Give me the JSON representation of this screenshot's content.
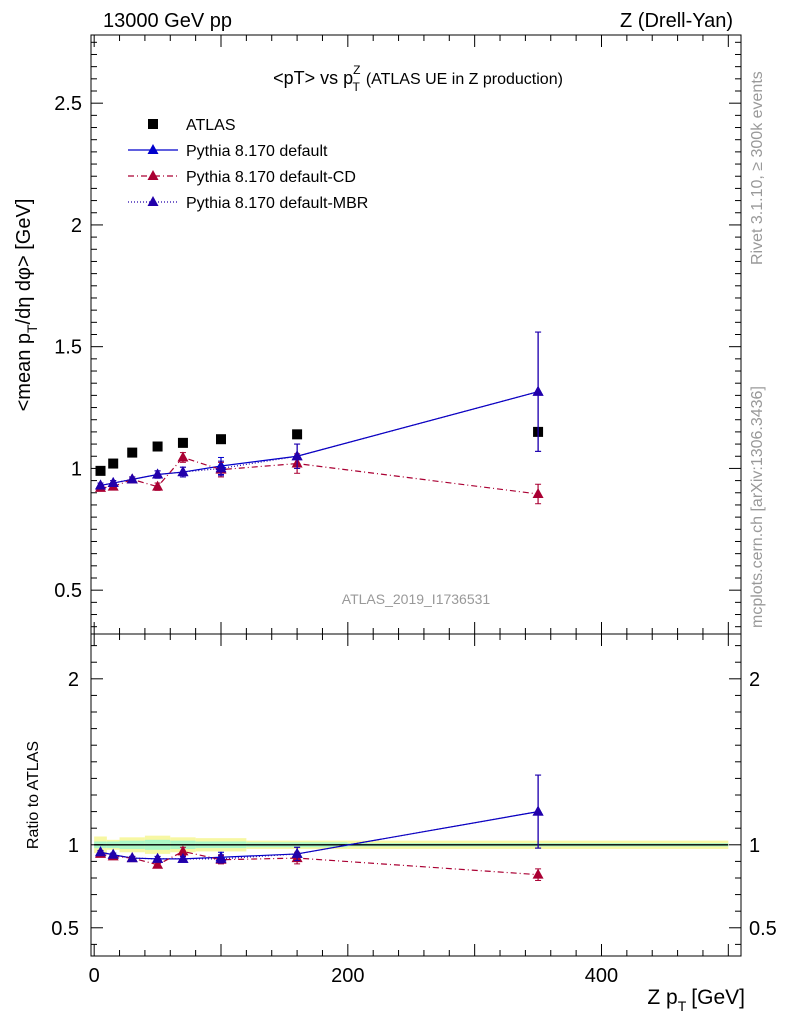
{
  "header": {
    "left": "13000 GeV pp",
    "right": "Z (Drell-Yan)"
  },
  "side_text": {
    "rivet": "Rivet 3.1.10, ≥ 300k events",
    "mcplots": "mcplots.cern.ch [arXiv:1306.3436]"
  },
  "analysis_id": "ATLAS_2019_I1736531",
  "colors": {
    "atlas": "#000000",
    "default": "#0000cc",
    "cd": "#aa0033",
    "mbr": "#2200aa",
    "band_inner": "#aaf7c6",
    "band_outer": "#f7f7a3"
  },
  "chart_data": [
    {
      "type": "scatter",
      "title": "<pT> vs p_T^Z (ATLAS UE in Z production)",
      "title_main": "<pT> vs p",
      "title_sup": "Z",
      "title_sub": "T",
      "title_rest": "(ATLAS UE in Z production)",
      "ylabel": "<mean p_T/dη dφ> [GeV]",
      "ylabel_a": "<mean p",
      "ylabel_sub": "T",
      "ylabel_b": "/dη dφ> [GeV]",
      "xlim": [
        -2.5,
        510
      ],
      "ylim": [
        0.32,
        2.78
      ],
      "yticks": [
        0.5,
        1,
        1.5,
        2,
        2.5
      ],
      "ytick_labels": [
        "0.5",
        "1",
        "1.5",
        "2",
        "2.5"
      ],
      "legend_position": "top-left",
      "series": [
        {
          "name": "ATLAS",
          "style": "marker-only",
          "x": [
            5,
            15,
            30,
            50,
            70,
            100,
            160,
            350
          ],
          "y": [
            0.99,
            1.02,
            1.065,
            1.09,
            1.105,
            1.12,
            1.14,
            1.15
          ]
        },
        {
          "name": "Pythia 8.170 default",
          "style": "solid",
          "x": [
            5,
            15,
            30,
            50,
            70,
            100,
            160,
            350
          ],
          "y": [
            0.93,
            0.94,
            0.955,
            0.975,
            0.985,
            1.01,
            1.05,
            1.315
          ],
          "err": [
            0.01,
            0.01,
            0.01,
            0.015,
            0.02,
            0.035,
            0.05,
            0.245
          ]
        },
        {
          "name": "Pythia 8.170 default-CD",
          "style": "dash-dot",
          "x": [
            5,
            15,
            30,
            50,
            70,
            100,
            160,
            350
          ],
          "y": [
            0.92,
            0.925,
            0.955,
            0.925,
            1.045,
            0.995,
            1.02,
            0.895
          ],
          "err": [
            0.01,
            0.01,
            0.01,
            0.015,
            0.02,
            0.03,
            0.04,
            0.04
          ]
        },
        {
          "name": "Pythia 8.170 default-MBR",
          "style": "dotted",
          "x": [
            5,
            15,
            30,
            50,
            70,
            100,
            160,
            350
          ],
          "y": [
            0.93,
            0.94,
            0.955,
            0.975,
            0.985,
            1.0,
            1.05,
            1.315
          ],
          "err": [
            0.01,
            0.01,
            0.01,
            0.015,
            0.02,
            0.03,
            0.05,
            0.245
          ]
        }
      ]
    },
    {
      "type": "scatter",
      "ylabel": "Ratio to ATLAS",
      "xlabel": "Z p_T [GeV]",
      "xlabel_a": "Z p",
      "xlabel_sub": "T",
      "xlabel_b": "[GeV]",
      "xlim": [
        -2.5,
        510
      ],
      "ylim": [
        0.33,
        2.27
      ],
      "xticks": [
        0,
        200,
        400
      ],
      "xtick_labels": [
        "0",
        "200",
        "400"
      ],
      "yticks": [
        0.5,
        1,
        2
      ],
      "ytick_labels": [
        "0.5",
        "1",
        "2"
      ],
      "reference_line": 1,
      "band": {
        "segments": [
          {
            "x": [
              0,
              10
            ],
            "inner": 0.02,
            "outer": 0.05
          },
          {
            "x": [
              10,
              20
            ],
            "inner": 0.02,
            "outer": 0.03
          },
          {
            "x": [
              20,
              40
            ],
            "inner": 0.025,
            "outer": 0.045
          },
          {
            "x": [
              40,
              60
            ],
            "inner": 0.03,
            "outer": 0.055
          },
          {
            "x": [
              60,
              80
            ],
            "inner": 0.025,
            "outer": 0.045
          },
          {
            "x": [
              80,
              120
            ],
            "inner": 0.02,
            "outer": 0.04
          },
          {
            "x": [
              120,
              200
            ],
            "inner": 0.015,
            "outer": 0.025
          },
          {
            "x": [
              200,
              500
            ],
            "inner": 0.01,
            "outer": 0.025
          }
        ]
      },
      "series": [
        {
          "name": "Pythia 8.170 default",
          "style": "solid",
          "x": [
            5,
            15,
            30,
            50,
            70,
            100,
            160,
            350
          ],
          "y": [
            0.955,
            0.94,
            0.92,
            0.915,
            0.915,
            0.925,
            0.945,
            1.2
          ],
          "err": [
            0.01,
            0.01,
            0.01,
            0.015,
            0.015,
            0.03,
            0.04,
            0.22
          ]
        },
        {
          "name": "Pythia 8.170 default-CD",
          "style": "dash-dot",
          "x": [
            5,
            15,
            30,
            50,
            70,
            100,
            160,
            350
          ],
          "y": [
            0.945,
            0.93,
            0.92,
            0.88,
            0.96,
            0.91,
            0.92,
            0.82
          ],
          "err": [
            0.01,
            0.01,
            0.01,
            0.015,
            0.025,
            0.025,
            0.035,
            0.035
          ]
        },
        {
          "name": "Pythia 8.170 default-MBR",
          "style": "dotted",
          "x": [
            5,
            15,
            30,
            50,
            70,
            100,
            160,
            350
          ],
          "y": [
            0.955,
            0.94,
            0.92,
            0.915,
            0.915,
            0.915,
            0.945,
            1.2
          ],
          "err": [
            0.01,
            0.01,
            0.01,
            0.015,
            0.015,
            0.025,
            0.04,
            0.22
          ]
        }
      ]
    }
  ]
}
